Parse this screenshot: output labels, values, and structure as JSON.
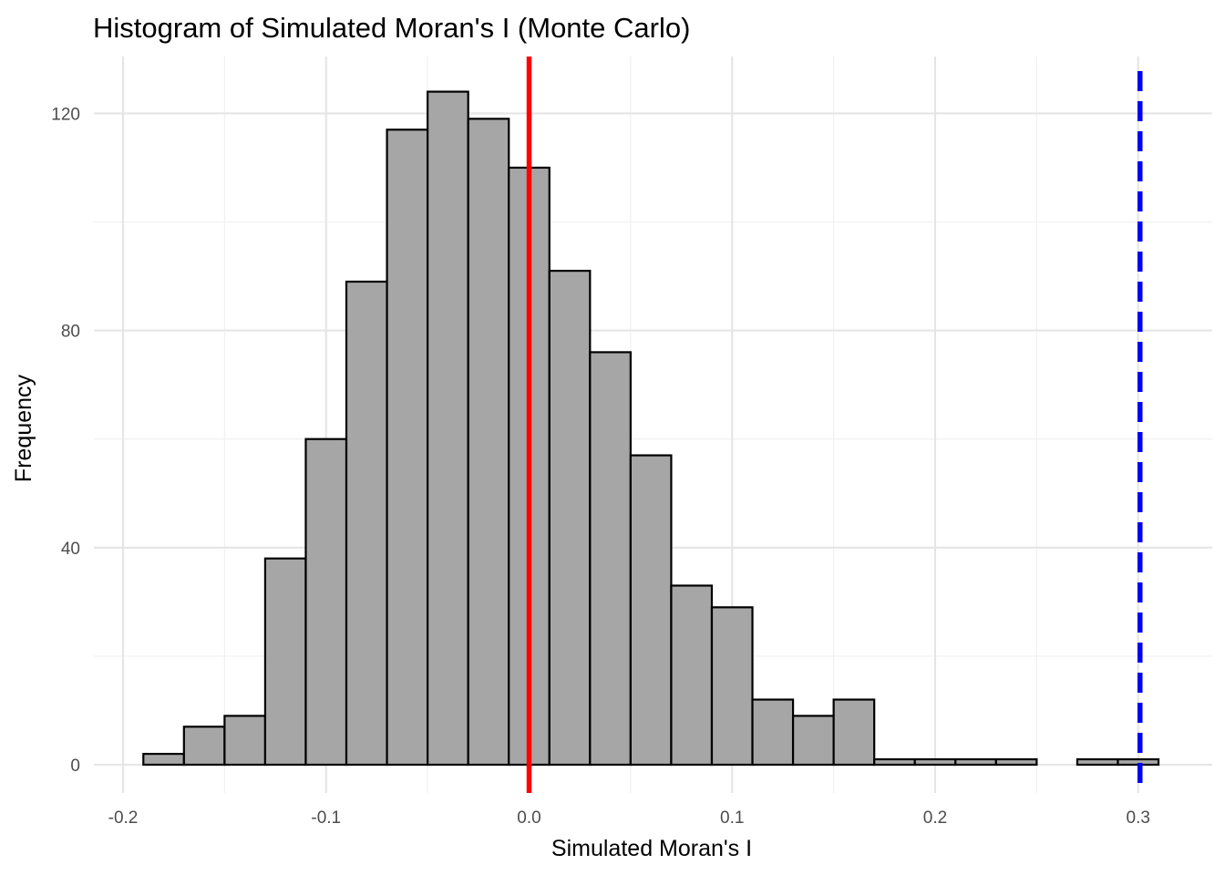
{
  "chart_data": {
    "type": "bar",
    "title": "Histogram of Simulated Moran's I (Monte Carlo)",
    "xlabel": "Simulated Moran's I",
    "ylabel": "Frequency",
    "xlim": [
      -0.2,
      0.31
    ],
    "ylim": [
      -6,
      130
    ],
    "x_ticks": [
      -0.2,
      -0.1,
      0.0,
      0.1,
      0.2,
      0.3
    ],
    "x_tick_labels": [
      "-0.2",
      "-0.1",
      "0.0",
      "0.1",
      "0.2",
      "0.3"
    ],
    "y_ticks": [
      0,
      40,
      80,
      120
    ],
    "y_tick_labels": [
      "0",
      "40",
      "80",
      "120"
    ],
    "bin_width": 0.02,
    "bins": [
      {
        "x0": -0.19,
        "x1": -0.17,
        "count": 2
      },
      {
        "x0": -0.17,
        "x1": -0.15,
        "count": 7
      },
      {
        "x0": -0.15,
        "x1": -0.13,
        "count": 9
      },
      {
        "x0": -0.13,
        "x1": -0.11,
        "count": 38
      },
      {
        "x0": -0.11,
        "x1": -0.09,
        "count": 60
      },
      {
        "x0": -0.09,
        "x1": -0.07,
        "count": 89
      },
      {
        "x0": -0.07,
        "x1": -0.05,
        "count": 117
      },
      {
        "x0": -0.05,
        "x1": -0.03,
        "count": 124
      },
      {
        "x0": -0.03,
        "x1": -0.01,
        "count": 119
      },
      {
        "x0": -0.01,
        "x1": 0.01,
        "count": 110
      },
      {
        "x0": 0.01,
        "x1": 0.03,
        "count": 91
      },
      {
        "x0": 0.03,
        "x1": 0.05,
        "count": 76
      },
      {
        "x0": 0.05,
        "x1": 0.07,
        "count": 57
      },
      {
        "x0": 0.07,
        "x1": 0.09,
        "count": 33
      },
      {
        "x0": 0.09,
        "x1": 0.11,
        "count": 29
      },
      {
        "x0": 0.11,
        "x1": 0.13,
        "count": 12
      },
      {
        "x0": 0.13,
        "x1": 0.15,
        "count": 9
      },
      {
        "x0": 0.15,
        "x1": 0.17,
        "count": 12
      },
      {
        "x0": 0.17,
        "x1": 0.19,
        "count": 1
      },
      {
        "x0": 0.19,
        "x1": 0.21,
        "count": 1
      },
      {
        "x0": 0.21,
        "x1": 0.23,
        "count": 1
      },
      {
        "x0": 0.23,
        "x1": 0.25,
        "count": 1
      },
      {
        "x0": 0.25,
        "x1": 0.27,
        "count": 0
      },
      {
        "x0": 0.27,
        "x1": 0.29,
        "count": 1
      },
      {
        "x0": 0.29,
        "x1": 0.31,
        "count": 1
      }
    ],
    "reference_lines": [
      {
        "x": 0.0,
        "color": "#ff0000",
        "style": "solid"
      },
      {
        "x": 0.3009,
        "color": "#0000ff",
        "style": "dashed"
      }
    ],
    "bar_fill": "#a6a6a6",
    "bar_outline": "#000000",
    "grid": true,
    "legend": "none"
  }
}
